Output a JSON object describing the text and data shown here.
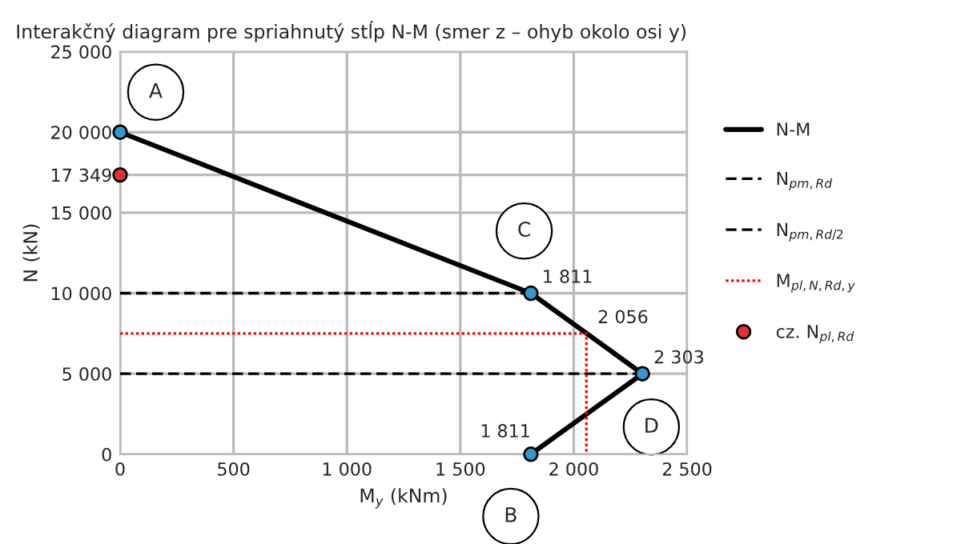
{
  "chart_data": {
    "type": "line",
    "title": "Interakčný diagram pre spriahnutý stĺp N-M (smer z – ohyb okolo osi y)",
    "xlabel": "M$_{y}$ (kNm)",
    "ylabel": "N (kN)",
    "series": [
      {
        "name": "N-M",
        "color": "#000000",
        "x": [
          0,
          1811,
          2303,
          1811
        ],
        "values": [
          20000,
          10000,
          5000,
          0
        ],
        "marker": "none",
        "line_style": "solid"
      },
      {
        "type": "scatter",
        "color": "#3399cc",
        "x": [
          0,
          1811,
          2303,
          1811
        ],
        "values": [
          20000,
          10000,
          5000,
          0
        ],
        "marker": "circle"
      },
      {
        "name": "N$_{pm,Rd}$",
        "color": "#000000",
        "x": [
          0,
          1811
        ],
        "values": [
          10000,
          10000
        ],
        "marker": "none",
        "line_style": "dashed"
      },
      {
        "name": "N$_{pm,Rd/2}$",
        "color": "#000000",
        "x": [
          0,
          2303
        ],
        "values": [
          5000,
          5000
        ],
        "marker": "none",
        "line_style": "dashed"
      },
      {
        "name": "M$_{pl,N,Rd,y}$",
        "color": "#ff0000",
        "x": [
          0,
          2056,
          2056
        ],
        "values": [
          7500,
          7500,
          0
        ],
        "marker": "none",
        "line_style": "dotted"
      },
      {
        "name": "cz. N$_{pl,Rd}$",
        "type": "scatter",
        "color": "#e83030",
        "x": [
          0
        ],
        "values": [
          17349
        ],
        "marker": "circle"
      }
    ],
    "annotations": [
      {
        "text": "A",
        "x": 0,
        "y": 20000
      },
      {
        "text": "C",
        "x": 1811,
        "y": 10000
      },
      {
        "text": "D",
        "x": 2303,
        "y": 5000
      },
      {
        "text": "B",
        "x": 1811,
        "y": 0
      },
      {
        "text": "1 811",
        "x": 1811,
        "y": 10000
      },
      {
        "text": "2 056",
        "x": 2056,
        "y": 7500
      },
      {
        "text": "2 303",
        "x": 2303,
        "y": 5000
      },
      {
        "text": "1 811",
        "x": 1811,
        "y": 0
      }
    ],
    "xlim": [
      0,
      2500
    ],
    "ylim": [
      0,
      25000
    ],
    "xticks": [
      0,
      500,
      {
        "value": 1000,
        "label": "1 000"
      },
      {
        "value": 1500,
        "label": "1 500"
      },
      {
        "value": 2000,
        "label": "2 000"
      },
      {
        "value": 2500,
        "label": "2 500"
      }
    ],
    "yticks": [
      0,
      {
        "value": 5000,
        "label": "5 000"
      },
      {
        "value": 10000,
        "label": "10 000"
      },
      {
        "value": 15000,
        "label": "15 000"
      },
      {
        "value": 17349,
        "label": "17 349"
      },
      {
        "value": 20000,
        "label": "20 000"
      },
      {
        "value": 25000,
        "label": "25 000"
      }
    ],
    "grid": true,
    "legend": "right"
  }
}
